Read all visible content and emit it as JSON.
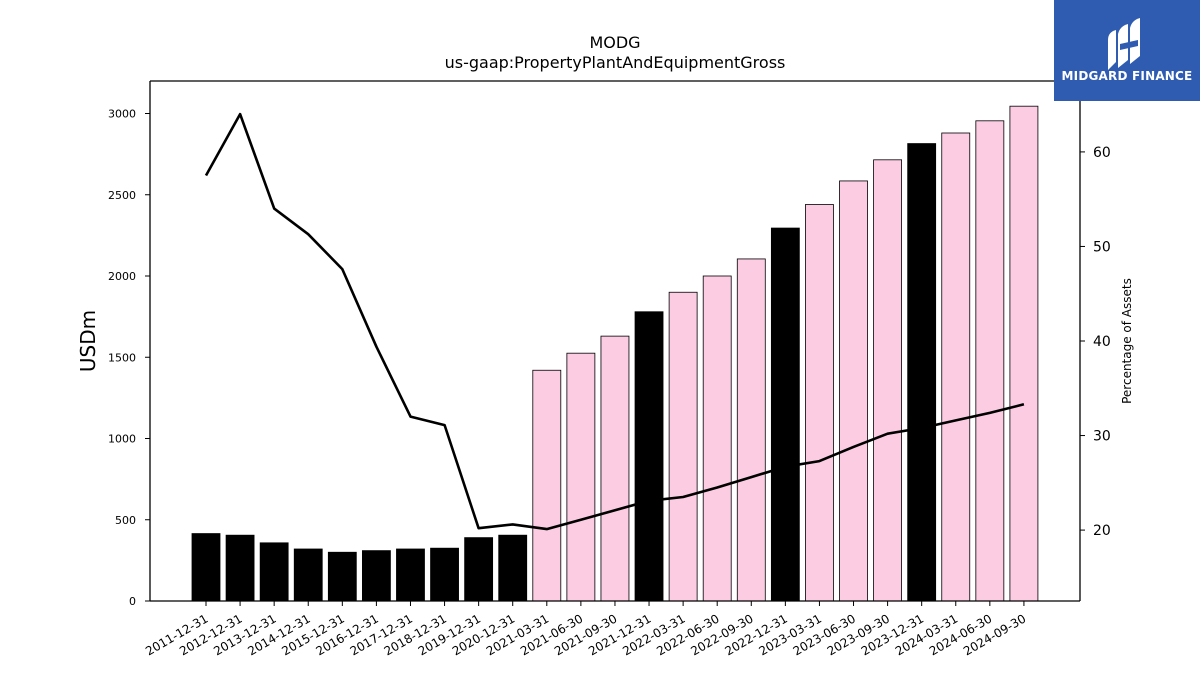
{
  "chart_data": {
    "type": "bar",
    "title": "MODG",
    "subtitle": "us-gaap:PropertyPlantAndEquipmentGross",
    "ylabel": "USDm",
    "y2label": "Percentage of Assets",
    "ylim": [
      0,
      3200
    ],
    "y2lim": [
      12.5,
      67.5
    ],
    "yticks": [
      0,
      500,
      1000,
      1500,
      2000,
      2500,
      3000
    ],
    "y2ticks": [
      20,
      30,
      40,
      50,
      60
    ],
    "categories": [
      "2011-12-31",
      "2012-12-31",
      "2013-12-31",
      "2014-12-31",
      "2015-12-31",
      "2016-12-31",
      "2017-12-31",
      "2018-12-31",
      "2019-12-31",
      "2020-12-31",
      "2021-03-31",
      "2021-06-30",
      "2021-09-30",
      "2021-12-31",
      "2022-03-31",
      "2022-06-30",
      "2022-09-30",
      "2022-12-31",
      "2023-03-31",
      "2023-06-30",
      "2023-09-30",
      "2023-12-31",
      "2024-03-31",
      "2024-06-30",
      "2024-09-30"
    ],
    "series": [
      {
        "type": "bar",
        "values": [
          415,
          405,
          358,
          320,
          300,
          310,
          320,
          325,
          390,
          405,
          1420,
          1525,
          1630,
          1780,
          1900,
          2000,
          2105,
          2295,
          2440,
          2585,
          2715,
          2815,
          2880,
          2955,
          3045
        ],
        "period": [
          "annual",
          "annual",
          "annual",
          "annual",
          "annual",
          "annual",
          "annual",
          "annual",
          "annual",
          "annual",
          "quarter",
          "quarter",
          "quarter",
          "annual",
          "quarter",
          "quarter",
          "quarter",
          "annual",
          "quarter",
          "quarter",
          "quarter",
          "annual",
          "quarter",
          "quarter",
          "quarter"
        ]
      },
      {
        "type": "line",
        "axis": "right",
        "values": [
          57.5,
          64.0,
          54.0,
          51.3,
          47.6,
          39.4,
          32.0,
          31.1,
          20.2,
          20.6,
          20.1,
          21.1,
          22.1,
          23.1,
          23.5,
          24.5,
          25.6,
          26.7,
          27.3,
          28.8,
          30.2,
          30.8,
          31.6,
          32.4,
          33.3
        ]
      }
    ],
    "colors": {
      "annual_bar": "#000000",
      "quarter_bar": "#fccce3",
      "bar_edge": "#000000",
      "line": "#000000"
    },
    "grid": false,
    "legend": "none"
  },
  "logo": {
    "text": "MIDGARD FINANCE",
    "background": "#2f5cb0"
  }
}
